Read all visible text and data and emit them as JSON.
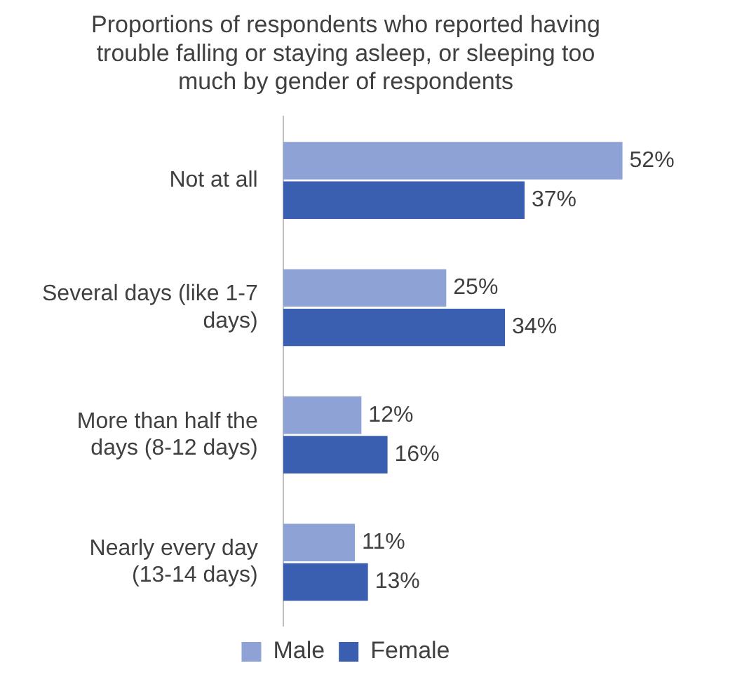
{
  "chart_data": {
    "type": "bar",
    "orientation": "horizontal",
    "title": "Proportions of respondents who reported having trouble falling or staying asleep, or sleeping too much by gender of respondents",
    "categories": [
      "Not at all",
      "Several days (like 1-7 days)",
      "More than half the days (8-12 days)",
      "Nearly every day (13-14 days)"
    ],
    "series": [
      {
        "name": "Male",
        "color": "#8fa2d6",
        "values": [
          52,
          25,
          12,
          11
        ],
        "value_labels": [
          "52%",
          "25%",
          "12%",
          "11%"
        ]
      },
      {
        "name": "Female",
        "color": "#3a5fb0",
        "values": [
          37,
          34,
          16,
          13
        ],
        "value_labels": [
          "37%",
          "34%",
          "16%",
          "13%"
        ]
      }
    ],
    "legend": "bottom",
    "grid": false,
    "tick_labels": "y"
  }
}
